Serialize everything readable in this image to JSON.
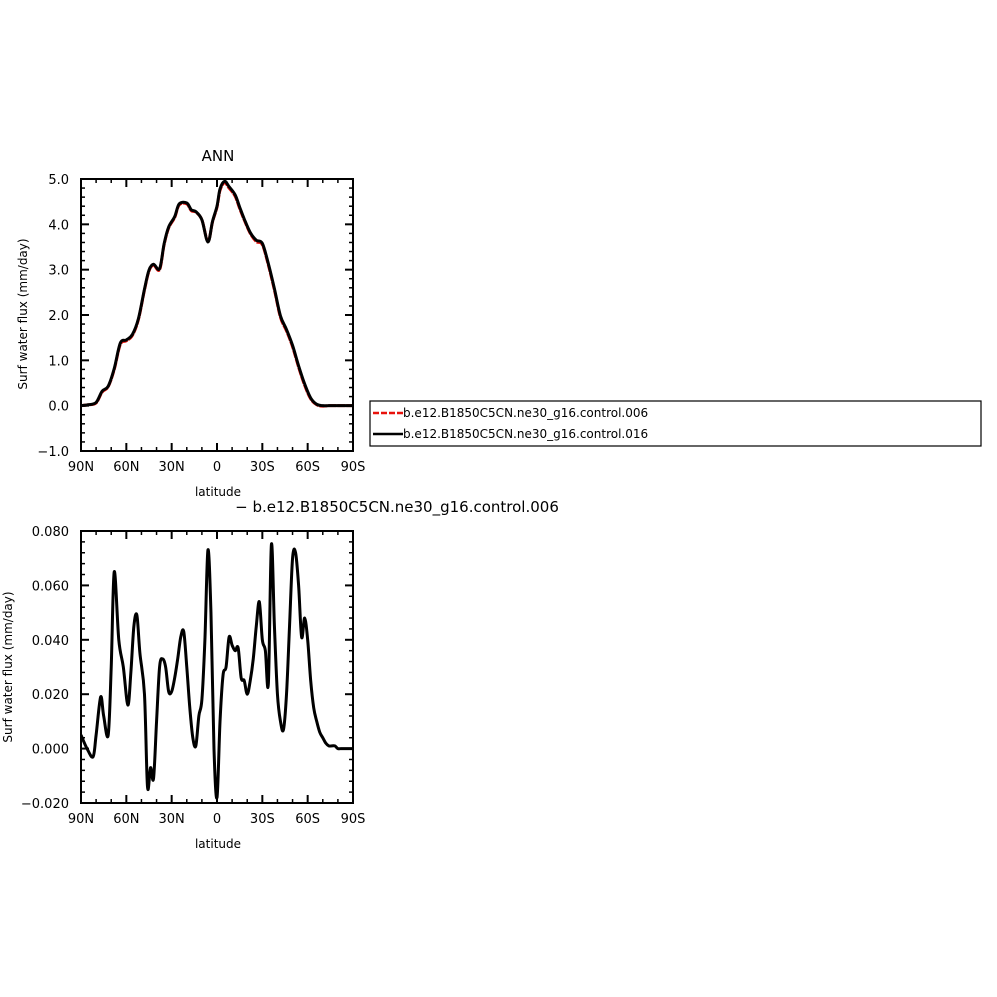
{
  "chart_data": [
    {
      "type": "line",
      "title": "ANN",
      "xlabel": "latitude",
      "ylabel": "Surf water flux (mm/day)",
      "xlim": [
        90,
        -90
      ],
      "ylim": [
        -1.0,
        5.0
      ],
      "x_ticks": [
        90,
        60,
        30,
        0,
        -30,
        -60,
        -90
      ],
      "x_tick_labels": [
        "90N",
        "60N",
        "30N",
        "0",
        "30S",
        "60S",
        "90S"
      ],
      "y_ticks": [
        -1.0,
        0.0,
        1.0,
        2.0,
        3.0,
        4.0,
        5.0
      ],
      "y_tick_labels": [
        "−1.0",
        "0.0",
        "1.0",
        "2.0",
        "3.0",
        "4.0",
        "5.0"
      ],
      "legend": "right",
      "series": [
        {
          "name": "b.e12.B1850C5CN.ne30_g16.control.006",
          "color": "#e8120c",
          "dash": "dashed",
          "x": [
            90,
            85,
            80,
            76,
            72,
            68,
            64,
            60,
            56,
            52,
            48,
            45,
            42,
            38,
            35,
            32,
            28,
            25,
            20,
            17,
            14,
            10,
            6,
            3,
            0,
            -2,
            -5,
            -8,
            -12,
            -15,
            -18,
            -22,
            -26,
            -30,
            -34,
            -38,
            -42,
            -46,
            -50,
            -54,
            -58,
            -62,
            -66,
            -70,
            -74,
            -78,
            -82,
            -86,
            -90
          ],
          "values": [
            0.0,
            0.02,
            0.06,
            0.3,
            0.42,
            0.8,
            1.35,
            1.43,
            1.55,
            1.9,
            2.55,
            2.97,
            3.1,
            3.0,
            3.55,
            3.92,
            4.15,
            4.43,
            4.45,
            4.3,
            4.27,
            4.1,
            3.62,
            4.05,
            4.38,
            4.75,
            4.92,
            4.8,
            4.62,
            4.35,
            4.1,
            3.8,
            3.62,
            3.55,
            3.1,
            2.55,
            1.95,
            1.65,
            1.3,
            0.85,
            0.45,
            0.15,
            0.02,
            -0.01,
            0.0,
            0.0,
            0.0,
            0.0,
            0.0
          ]
        },
        {
          "name": "b.e12.B1850C5CN.ne30_g16.control.016",
          "color": "#000000",
          "dash": "solid",
          "x": [
            90,
            85,
            80,
            76,
            72,
            68,
            64,
            60,
            56,
            52,
            48,
            45,
            42,
            38,
            35,
            32,
            28,
            25,
            20,
            17,
            14,
            10,
            6,
            3,
            0,
            -2,
            -5,
            -8,
            -12,
            -15,
            -18,
            -22,
            -26,
            -30,
            -34,
            -38,
            -42,
            -46,
            -50,
            -54,
            -58,
            -62,
            -66,
            -70,
            -74,
            -78,
            -82,
            -86,
            -90
          ],
          "values": [
            0.0,
            0.02,
            0.07,
            0.32,
            0.43,
            0.82,
            1.38,
            1.45,
            1.57,
            1.92,
            2.57,
            2.99,
            3.12,
            3.02,
            3.57,
            3.94,
            4.17,
            4.45,
            4.47,
            4.32,
            4.28,
            4.1,
            3.61,
            4.06,
            4.4,
            4.78,
            4.95,
            4.83,
            4.65,
            4.38,
            4.12,
            3.82,
            3.65,
            3.58,
            3.13,
            2.58,
            1.98,
            1.68,
            1.33,
            0.88,
            0.48,
            0.17,
            0.03,
            0.0,
            0.0,
            0.0,
            0.0,
            0.0,
            0.0
          ]
        }
      ]
    },
    {
      "type": "line",
      "title": "− b.e12.B1850C5CN.ne30_g16.control.006",
      "xlabel": "latitude",
      "ylabel": "Surf water flux (mm/day)",
      "xlim": [
        90,
        -90
      ],
      "ylim": [
        -0.02,
        0.08
      ],
      "x_ticks": [
        90,
        60,
        30,
        0,
        -30,
        -60,
        -90
      ],
      "x_tick_labels": [
        "90N",
        "60N",
        "30N",
        "0",
        "30S",
        "60S",
        "90S"
      ],
      "y_ticks": [
        -0.02,
        0.0,
        0.02,
        0.04,
        0.06,
        0.08
      ],
      "y_tick_labels": [
        "−0.020",
        "0.000",
        "0.020",
        "0.040",
        "0.060",
        "0.080"
      ],
      "series": [
        {
          "color": "#000000",
          "x": [
            90,
            86,
            82,
            80,
            77,
            75,
            72,
            70,
            68,
            65,
            62,
            59,
            57,
            55,
            53,
            51,
            48,
            46,
            44,
            42,
            40,
            38,
            36,
            34,
            32,
            30,
            28,
            26,
            24,
            22,
            20,
            18,
            16,
            14,
            12,
            10,
            8,
            6,
            4,
            2,
            0,
            -2,
            -4,
            -6,
            -8,
            -10,
            -12,
            -14,
            -16,
            -18,
            -20,
            -22,
            -24,
            -26,
            -28,
            -30,
            -32,
            -34,
            -36,
            -38,
            -40,
            -42,
            -44,
            -46,
            -48,
            -50,
            -52,
            -54,
            -56,
            -58,
            -60,
            -62,
            -64,
            -66,
            -68,
            -70,
            -72,
            -74,
            -76,
            -78,
            -80,
            -82,
            -84,
            -86,
            -88,
            -90
          ],
          "values": [
            0.005,
            0.0,
            -0.003,
            0.005,
            0.019,
            0.012,
            0.005,
            0.03,
            0.065,
            0.04,
            0.03,
            0.016,
            0.028,
            0.045,
            0.049,
            0.035,
            0.02,
            -0.014,
            -0.007,
            -0.011,
            0.01,
            0.03,
            0.033,
            0.03,
            0.021,
            0.021,
            0.026,
            0.033,
            0.041,
            0.043,
            0.03,
            0.015,
            0.004,
            0.001,
            0.012,
            0.018,
            0.04,
            0.073,
            0.05,
            0.0,
            -0.018,
            0.01,
            0.027,
            0.03,
            0.041,
            0.038,
            0.036,
            0.037,
            0.026,
            0.025,
            0.02,
            0.025,
            0.033,
            0.045,
            0.054,
            0.04,
            0.036,
            0.024,
            0.075,
            0.045,
            0.02,
            0.01,
            0.007,
            0.02,
            0.045,
            0.07,
            0.072,
            0.06,
            0.041,
            0.048,
            0.04,
            0.025,
            0.015,
            0.01,
            0.006,
            0.004,
            0.002,
            0.001,
            0.001,
            0.001,
            0.0,
            0.0,
            0.0,
            0.0,
            0.0,
            0.0
          ]
        }
      ]
    }
  ]
}
